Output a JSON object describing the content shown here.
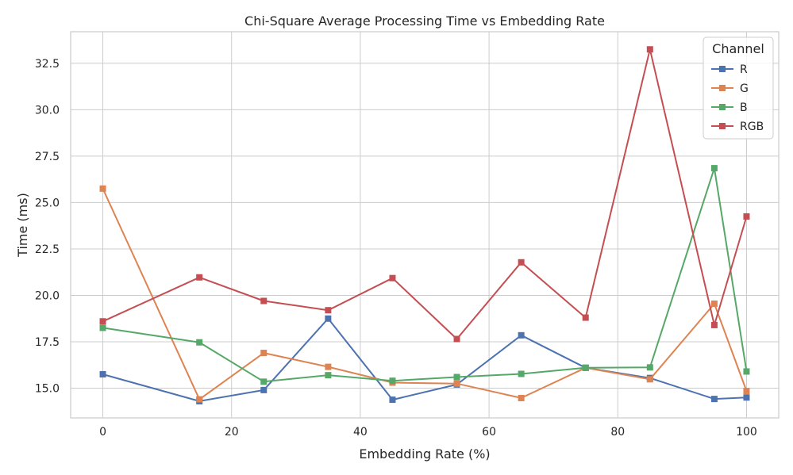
{
  "chart_data": {
    "type": "line",
    "title": "Chi-Square Average Processing Time vs Embedding Rate",
    "xlabel": "Embedding Rate (%)",
    "ylabel": "Time (ms)",
    "xlim": [
      -5,
      105
    ],
    "ylim": [
      13.4,
      34.2
    ],
    "xticks": [
      0,
      20,
      40,
      60,
      80,
      100
    ],
    "yticks": [
      15.0,
      17.5,
      20.0,
      22.5,
      25.0,
      27.5,
      30.0,
      32.5
    ],
    "xtick_labels": [
      "0",
      "20",
      "40",
      "60",
      "80",
      "100"
    ],
    "ytick_labels": [
      "15.0",
      "17.5",
      "20.0",
      "22.5",
      "25.0",
      "27.5",
      "30.0",
      "32.5"
    ],
    "grid": true,
    "legend_title": "Channel",
    "legend_position": "top-right",
    "x": [
      0,
      15,
      25,
      35,
      45,
      55,
      65,
      75,
      85,
      95,
      100
    ],
    "series": [
      {
        "name": "R",
        "color": "#4c72b0",
        "marker": "square",
        "values": [
          15.75,
          14.3,
          14.9,
          18.75,
          14.38,
          15.2,
          17.85,
          16.1,
          15.55,
          14.42,
          14.5
        ]
      },
      {
        "name": "G",
        "color": "#dd8452",
        "marker": "square",
        "values": [
          25.75,
          14.4,
          16.9,
          16.15,
          15.3,
          15.25,
          14.47,
          16.1,
          15.48,
          19.55,
          14.85
        ]
      },
      {
        "name": "B",
        "color": "#55a868",
        "marker": "square",
        "values": [
          18.25,
          17.47,
          15.35,
          15.7,
          15.4,
          15.6,
          15.77,
          16.1,
          16.12,
          26.85,
          15.9
        ]
      },
      {
        "name": "RGB",
        "color": "#c44e52",
        "marker": "square",
        "values": [
          18.6,
          20.97,
          19.7,
          19.2,
          20.93,
          17.65,
          21.78,
          18.8,
          33.25,
          18.4,
          24.25
        ]
      }
    ]
  }
}
